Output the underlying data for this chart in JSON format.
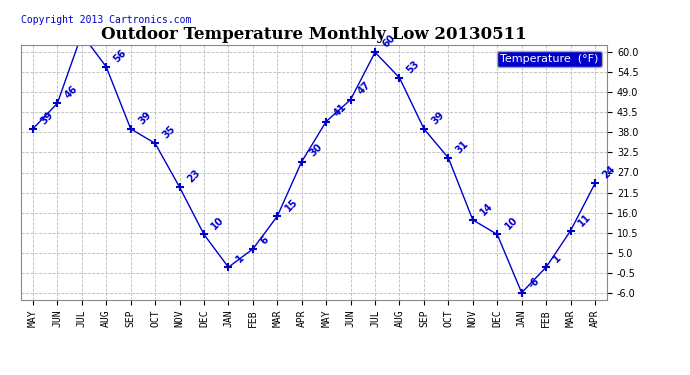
{
  "title": "Outdoor Temperature Monthly Low 20130511",
  "copyright": "Copyright 2013 Cartronics.com",
  "legend_label": "Temperature  (°F)",
  "x_labels": [
    "MAY",
    "JUN",
    "JUL",
    "AUG",
    "SEP",
    "OCT",
    "NOV",
    "DEC",
    "JAN",
    "FEB",
    "MAR",
    "APR",
    "MAY",
    "JUN",
    "JUL",
    "AUG",
    "SEP",
    "OCT",
    "NOV",
    "DEC",
    "JAN",
    "FEB",
    "MAR",
    "APR"
  ],
  "y_values": [
    39,
    46,
    65,
    56,
    39,
    35,
    23,
    10,
    1,
    6,
    15,
    30,
    41,
    47,
    60,
    53,
    39,
    31,
    14,
    10,
    -6,
    1,
    11,
    24
  ],
  "line_color": "#0000CC",
  "marker": "+",
  "background_color": "#ffffff",
  "grid_color": "#bbbbbb",
  "ylim_min": -8,
  "ylim_max": 62,
  "yticks": [
    -6.0,
    -0.5,
    5.0,
    10.5,
    16.0,
    21.5,
    27.0,
    32.5,
    38.0,
    43.5,
    49.0,
    54.5,
    60.0
  ],
  "title_fontsize": 12,
  "tick_fontsize": 7,
  "annotation_fontsize": 7,
  "legend_bg": "#0000CC",
  "legend_text_color": "#ffffff",
  "legend_fontsize": 8,
  "copyright_fontsize": 7
}
